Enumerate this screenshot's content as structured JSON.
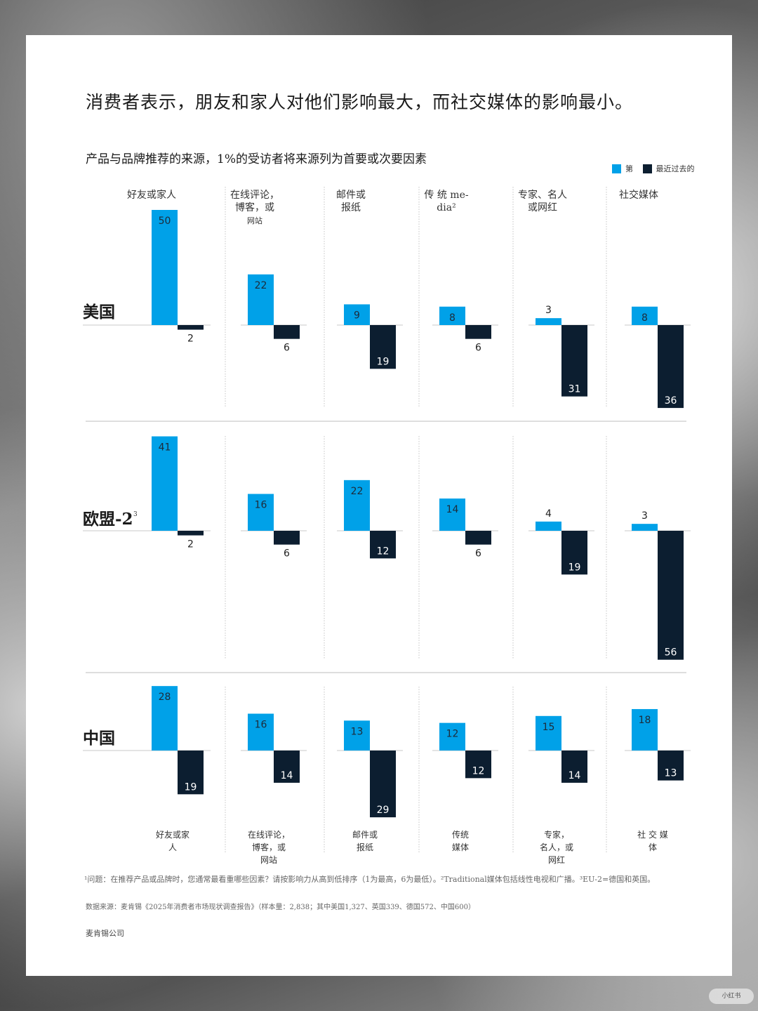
{
  "headline": "消费者表示，朋友和家人对他们影响最大，而社交媒体的影响最小。",
  "chart_data": {
    "type": "bar",
    "title": "产品与品牌推荐的来源，1%的受访者将来源列为首要或次要因素",
    "categories": [
      "好友或家人",
      "在线评论，博客，或网站",
      "邮件或报纸",
      "传统 media²",
      "专家、名人或网红",
      "社交媒体"
    ],
    "categories_top": [
      [
        "好友或家人"
      ],
      [
        "在线评论，",
        "博客，或",
        "网站"
      ],
      [
        "邮件或",
        "报纸"
      ],
      [
        "传 统 me-",
        "dia²"
      ],
      [
        "专家、名人",
        "或网红"
      ],
      [
        "社交媒体"
      ]
    ],
    "categories_bottom": [
      [
        "好友或家",
        "人"
      ],
      [
        "在线评论，",
        "博客，或",
        "网站"
      ],
      [
        "邮件或",
        "报纸"
      ],
      [
        "传统",
        "媒体"
      ],
      [
        "专家，",
        "名人，或",
        "网红"
      ],
      [
        "社 交 媒",
        "体"
      ]
    ],
    "legend": [
      "第",
      "最近过去的"
    ],
    "colors": {
      "primary": "#00a1e8",
      "secondary": "#0c1e30"
    },
    "regions": [
      {
        "name": "美国",
        "sup": "",
        "series": [
          {
            "name": "第",
            "values": [
              50,
              22,
              9,
              8,
              3,
              8
            ]
          },
          {
            "name": "最近过去的",
            "values": [
              2,
              6,
              19,
              6,
              31,
              36
            ]
          }
        ]
      },
      {
        "name": "欧盟-2",
        "sup": "3",
        "series": [
          {
            "name": "第",
            "values": [
              41,
              16,
              22,
              14,
              4,
              3
            ]
          },
          {
            "name": "最近过去的",
            "values": [
              2,
              6,
              12,
              6,
              19,
              56
            ]
          }
        ]
      },
      {
        "name": "中国",
        "sup": "",
        "series": [
          {
            "name": "第",
            "values": [
              28,
              16,
              13,
              12,
              15,
              18
            ]
          },
          {
            "name": "最近过去的",
            "values": [
              19,
              14,
              29,
              12,
              14,
              13
            ]
          }
        ]
      }
    ]
  },
  "footnote_1": "¹问题：在推荐产品或品牌时，您通常最看重哪些因素？请按影响力从高到低排序（1为最高，6为最低）。²Traditional媒体包括线性电视和广播。³EU-2=德国和英国。",
  "footnote_2": "数据来源：麦肯锡《2025年消费者市场现状调查报告》（样本量：2,838；其中美国1,327、英国339、德国572、中国600）",
  "brand": "麦肯锡公司",
  "watermark": "小红书"
}
